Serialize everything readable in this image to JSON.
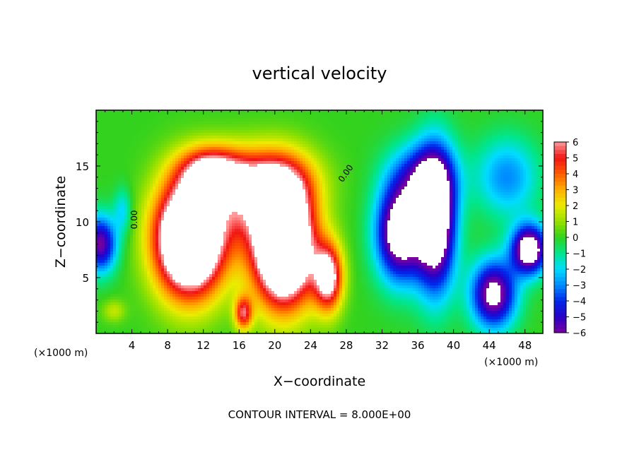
{
  "chart_data": {
    "type": "heatmap",
    "title": "vertical velocity",
    "xlabel": "X−coordinate",
    "ylabel": "Z−coordinate",
    "x_unit_label_left": "(×1000 m)",
    "x_unit_label_right": "(×1000 m)",
    "footer": "CONTOUR INTERVAL = 8.000E+00",
    "xlim": [
      0,
      50
    ],
    "ylim": [
      0,
      20
    ],
    "x_ticks": [
      4,
      8,
      12,
      16,
      20,
      24,
      28,
      32,
      36,
      40,
      44,
      48
    ],
    "y_ticks": [
      5,
      10,
      15
    ],
    "colorbar": {
      "min": -6,
      "max": 6,
      "ticks": [
        "6",
        "5",
        "4",
        "3",
        "2",
        "1",
        "0",
        "−1",
        "−2",
        "−3",
        "−4",
        "−5",
        "−6"
      ],
      "out_of_range_color": "#ffffff"
    },
    "zero_contour_label": "0.00",
    "features": [
      {
        "kind": "updraft",
        "x": 10.5,
        "z": 8.5,
        "sx": 3.8,
        "sz": 5.0,
        "amp": 13
      },
      {
        "kind": "updraft",
        "x": 21.0,
        "z": 7.8,
        "sx": 3.4,
        "sz": 5.2,
        "amp": 13
      },
      {
        "kind": "updraft",
        "x": 13.0,
        "z": 14.5,
        "sx": 3.5,
        "sz": 2.2,
        "amp": 6
      },
      {
        "kind": "updraft",
        "x": 20.0,
        "z": 13.5,
        "sx": 4.5,
        "sz": 3.0,
        "amp": 5
      },
      {
        "kind": "updraft",
        "x": 16.5,
        "z": 12.0,
        "sx": 4.0,
        "sz": 4.0,
        "amp": 3
      },
      {
        "kind": "updraft",
        "x": 26.0,
        "z": 5.0,
        "sx": 1.6,
        "sz": 3.0,
        "amp": 7
      },
      {
        "kind": "updraft",
        "x": 16.5,
        "z": 1.8,
        "sx": 1.0,
        "sz": 1.5,
        "amp": 5
      },
      {
        "kind": "updraft",
        "x": 2.0,
        "z": 2.0,
        "sx": 1.3,
        "sz": 1.0,
        "amp": 1.5
      },
      {
        "kind": "downdraft",
        "x": 34.0,
        "z": 9.0,
        "sx": 2.6,
        "sz": 4.2,
        "amp": -8
      },
      {
        "kind": "downdraft",
        "x": 38.0,
        "z": 10.0,
        "sx": 2.2,
        "sz": 6.0,
        "amp": -9
      },
      {
        "kind": "downdraft",
        "x": 36.5,
        "z": 14.0,
        "sx": 3.5,
        "sz": 3.0,
        "amp": -4
      },
      {
        "kind": "downdraft",
        "x": 44.5,
        "z": 3.5,
        "sx": 2.5,
        "sz": 3.0,
        "amp": -7
      },
      {
        "kind": "downdraft",
        "x": 48.5,
        "z": 7.5,
        "sx": 2.0,
        "sz": 2.2,
        "amp": -8
      },
      {
        "kind": "downdraft",
        "x": 46.0,
        "z": 14.0,
        "sx": 3.5,
        "sz": 3.5,
        "amp": -3
      },
      {
        "kind": "downdraft",
        "x": 0.5,
        "z": 8.0,
        "sx": 1.8,
        "sz": 2.5,
        "amp": -6
      },
      {
        "kind": "downdraft",
        "x": 3.0,
        "z": 11.0,
        "sx": 1.0,
        "sz": 2.0,
        "amp": -2
      }
    ]
  }
}
